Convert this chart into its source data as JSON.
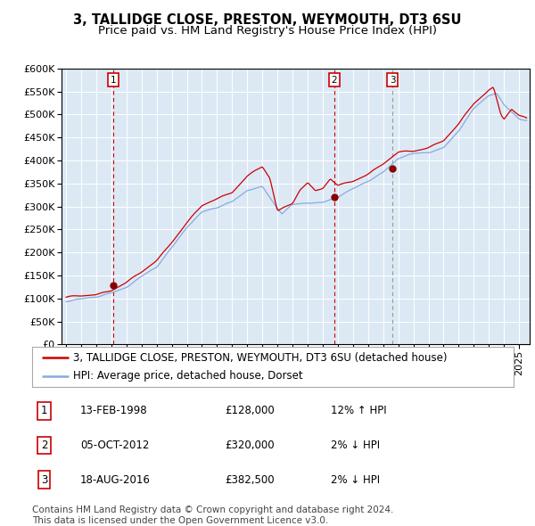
{
  "title": "3, TALLIDGE CLOSE, PRESTON, WEYMOUTH, DT3 6SU",
  "subtitle": "Price paid vs. HM Land Registry's House Price Index (HPI)",
  "ylim": [
    0,
    600000
  ],
  "yticks": [
    0,
    50000,
    100000,
    150000,
    200000,
    250000,
    300000,
    350000,
    400000,
    450000,
    500000,
    550000,
    600000
  ],
  "bg_color": "#dce9f5",
  "grid_color": "#ffffff",
  "sale_color": "#cc0000",
  "hpi_color": "#88aadd",
  "sale_label": "3, TALLIDGE CLOSE, PRESTON, WEYMOUTH, DT3 6SU (detached house)",
  "hpi_label": "HPI: Average price, detached house, Dorset",
  "transactions": [
    {
      "num": 1,
      "date": "13-FEB-1998",
      "price": "£128,000",
      "pct": "12% ↑ HPI",
      "year": 1998.12
    },
    {
      "num": 2,
      "date": "05-OCT-2012",
      "price": "£320,000",
      "pct": "2% ↓ HPI",
      "year": 2012.76
    },
    {
      "num": 3,
      "date": "18-AUG-2016",
      "price": "£382,500",
      "pct": "2% ↓ HPI",
      "year": 2016.63
    }
  ],
  "vline_colors": [
    "#cc0000",
    "#cc0000",
    "#999999"
  ],
  "vline_styles": [
    "--",
    "--",
    "--"
  ],
  "copyright": "Contains HM Land Registry data © Crown copyright and database right 2024.\nThis data is licensed under the Open Government Licence v3.0.",
  "title_fontsize": 10.5,
  "subtitle_fontsize": 9.5,
  "tick_fontsize": 8,
  "legend_fontsize": 8.5,
  "table_fontsize": 8.5,
  "copyright_fontsize": 7.5,
  "xstart": 1994.7,
  "xend": 2025.7
}
